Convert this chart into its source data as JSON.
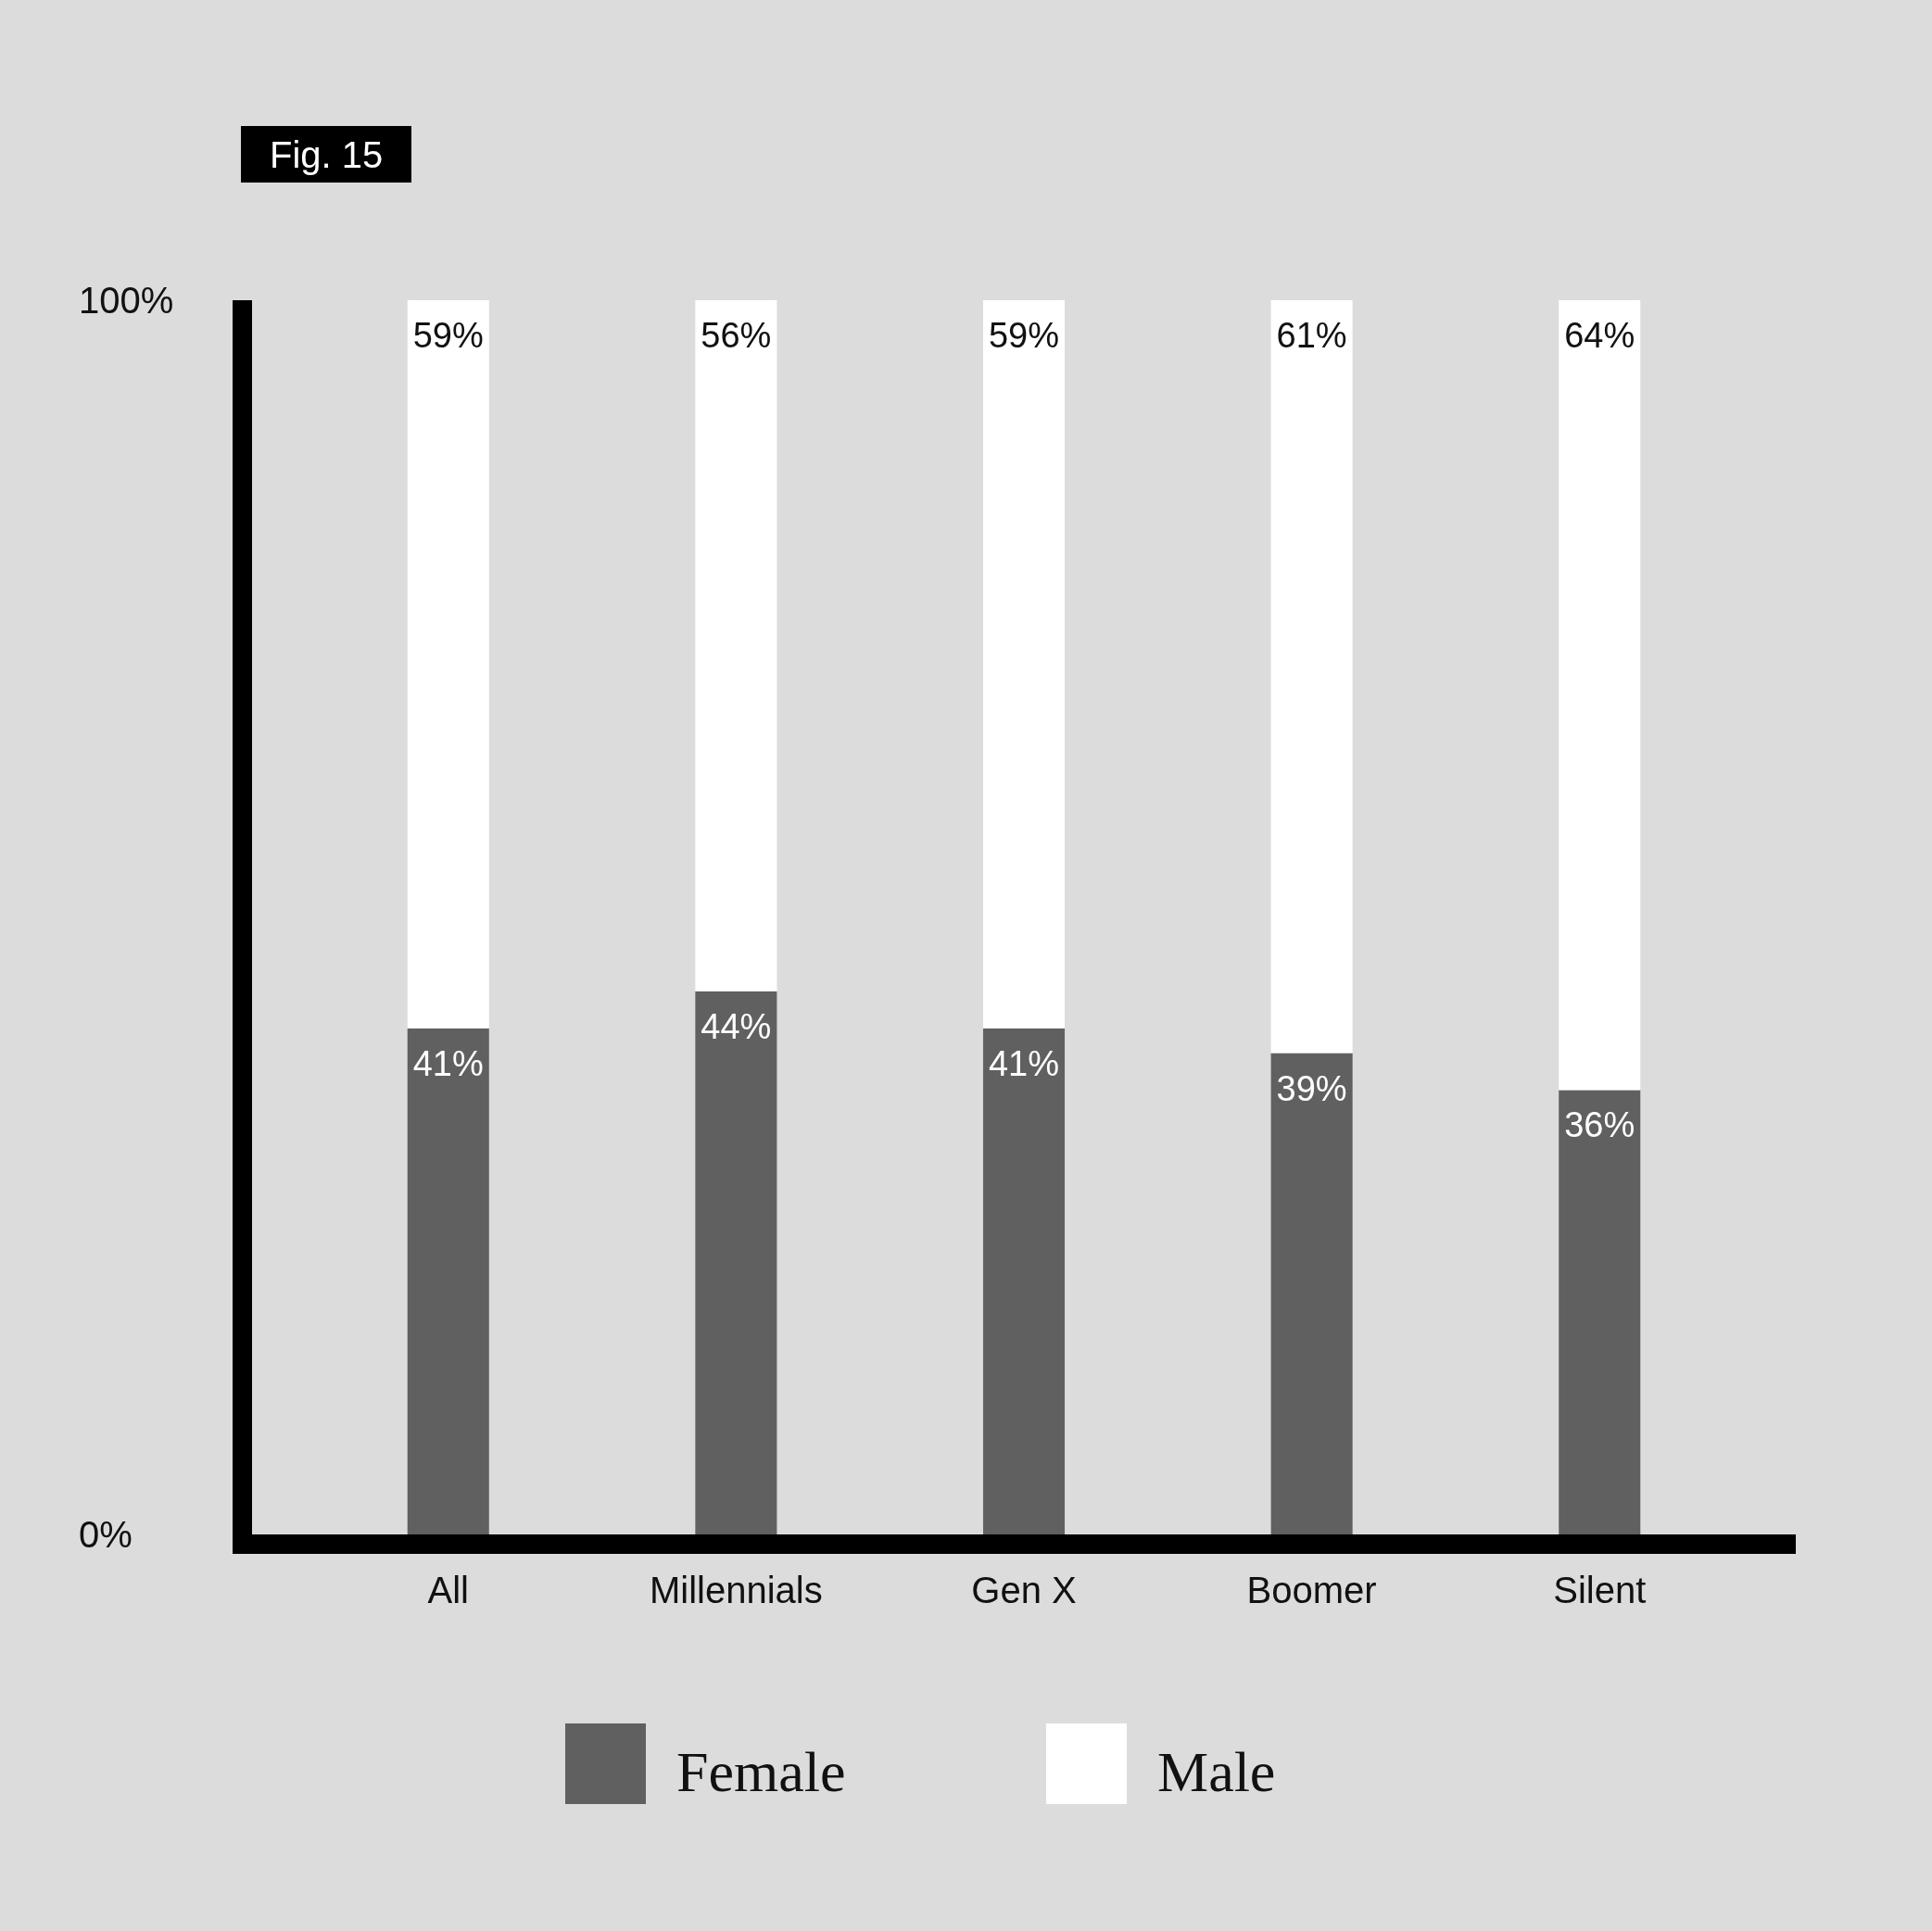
{
  "chart_data": {
    "type": "bar",
    "title": "Fig. 15",
    "categories": [
      "All",
      "Millennials",
      "Gen X",
      "Boomer",
      "Silent"
    ],
    "series": [
      {
        "name": "Female",
        "color": "#606060",
        "values": [
          41,
          44,
          41,
          39,
          36
        ],
        "value_labels": [
          "41%",
          "44%",
          "41%",
          "39%",
          "36%"
        ]
      },
      {
        "name": "Male",
        "color": "#ffffff",
        "values": [
          59,
          56,
          59,
          61,
          64
        ],
        "value_labels": [
          "59%",
          "56%",
          "59%",
          "61%",
          "64%"
        ]
      }
    ],
    "stacked": true,
    "ylim": [
      0,
      100
    ],
    "yticks": [
      {
        "value": 0,
        "label": "0%"
      },
      {
        "value": 100,
        "label": "100%"
      }
    ],
    "legend": "bottom"
  }
}
